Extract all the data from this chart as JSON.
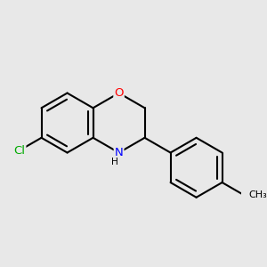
{
  "background_color": "#e8e8e8",
  "bond_color": "#000000",
  "bond_width": 1.5,
  "atom_colors": {
    "O": "#ff0000",
    "N": "#0000ff",
    "Cl": "#00aa00",
    "C": "#000000",
    "H": "#000000"
  },
  "font_size": 9.5,
  "figsize": [
    3.0,
    3.0
  ],
  "dpi": 100
}
